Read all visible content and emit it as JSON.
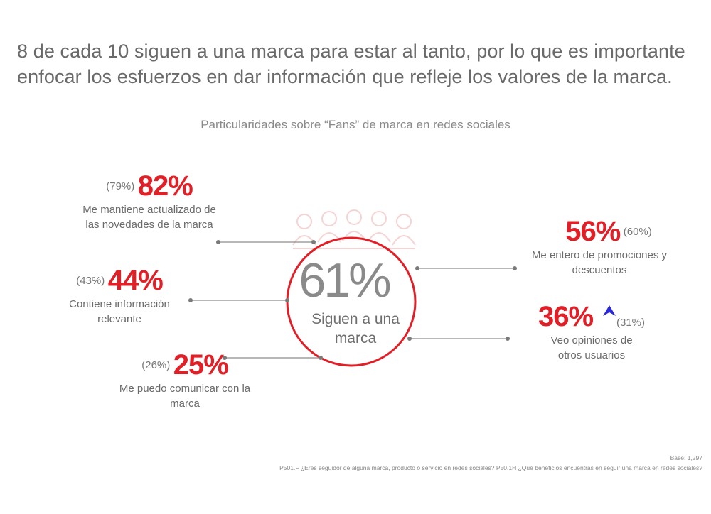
{
  "headline": "8 de cada 10 siguen a una marca para estar al tanto, por lo que es importante enfocar los esfuerzos en dar información que refleje los valores de la marca.",
  "colors": {
    "accent": "#e21f26",
    "line": "#8c8c8c",
    "arrow": "#2a2ad6"
  },
  "chart_data": {
    "type": "callout",
    "title": "Particularidades sobre “Fans” de marca en redes sociales",
    "center": {
      "value": "61%",
      "label": "Siguen a una marca"
    },
    "items": [
      {
        "value": "82%",
        "previous": "(79%)",
        "label": "Me mantiene actualizado de las novedades de la marca",
        "trend": "none"
      },
      {
        "value": "44%",
        "previous": "(43%)",
        "label": "Contiene información relevante",
        "trend": "none"
      },
      {
        "value": "25%",
        "previous": "(26%)",
        "label": "Me puedo comunicar con la marca",
        "trend": "none"
      },
      {
        "value": "56%",
        "previous": "(60%)",
        "label": "Me entero de promociones y descuentos",
        "trend": "none"
      },
      {
        "value": "36%",
        "previous": "(31%)",
        "label": "Veo opiniones de otros usuarios",
        "trend": "up"
      }
    ]
  },
  "footer": {
    "base": "Base: 1,297",
    "question": "P501.F ¿Eres seguidor de alguna marca, producto o servicio en redes sociales? P50.1H ¿Qué beneficios encuentras en seguir una  marca en redes sociales?"
  }
}
